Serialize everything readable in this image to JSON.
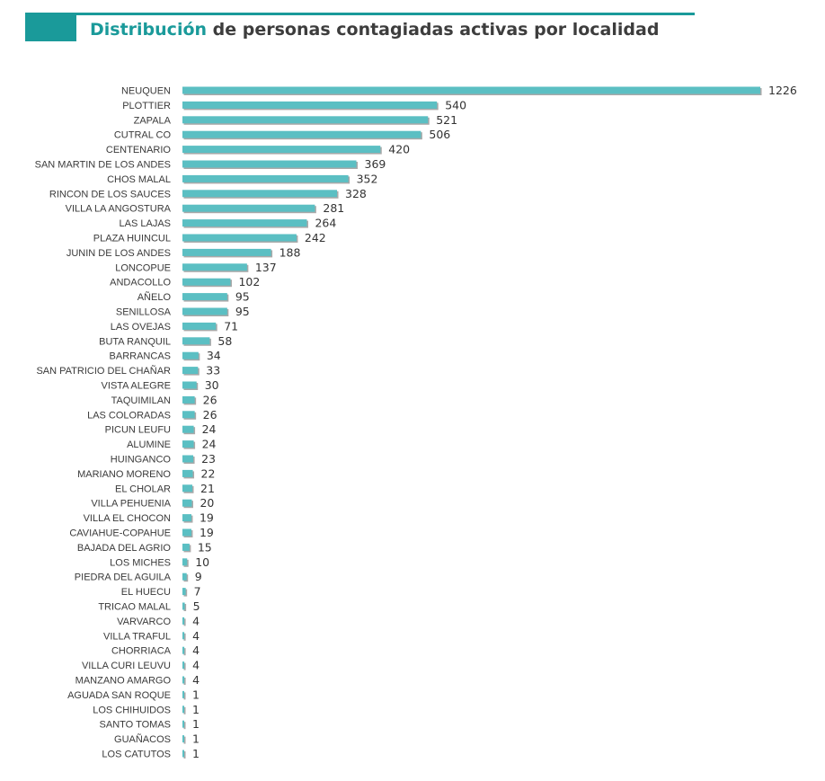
{
  "header": {
    "title_accent": "Distribución",
    "title_rest": " de personas contagiadas activas por localidad"
  },
  "colors": {
    "accent": "#1a9a9a",
    "bar": "#5bbfc3",
    "bar_shadow": "#a9a9a9"
  },
  "chart_data": {
    "type": "bar",
    "orientation": "horizontal",
    "title": "Distribución de personas contagiadas activas por localidad",
    "xlabel": "",
    "ylabel": "",
    "grid": false,
    "legend": "none",
    "xlim": [
      0,
      1226
    ],
    "categories": [
      "NEUQUEN",
      "PLOTTIER",
      "ZAPALA",
      "CUTRAL CO",
      "CENTENARIO",
      "SAN MARTIN DE LOS ANDES",
      "CHOS MALAL",
      "RINCON DE LOS SAUCES",
      "VILLA LA ANGOSTURA",
      "LAS LAJAS",
      "PLAZA HUINCUL",
      "JUNIN DE LOS ANDES",
      "LONCOPUE",
      "ANDACOLLO",
      "AÑELO",
      "SENILLOSA",
      "LAS OVEJAS",
      "BUTA RANQUIL",
      "BARRANCAS",
      "SAN PATRICIO DEL CHAÑAR",
      "VISTA ALEGRE",
      "TAQUIMILAN",
      "LAS COLORADAS",
      "PICUN LEUFU",
      "ALUMINE",
      "HUINGANCO",
      "MARIANO MORENO",
      "EL CHOLAR",
      "VILLA PEHUENIA",
      "VILLA EL CHOCON",
      "CAVIAHUE-COPAHUE",
      "BAJADA DEL AGRIO",
      "LOS MICHES",
      "PIEDRA DEL AGUILA",
      "EL HUECU",
      "TRICAO MALAL",
      "VARVARCO",
      "VILLA TRAFUL",
      "CHORRIACA",
      "VILLA CURI LEUVU",
      "MANZANO AMARGO",
      "AGUADA SAN ROQUE",
      "LOS CHIHUIDOS",
      "SANTO TOMAS",
      "GUAÑACOS",
      "LOS CATUTOS"
    ],
    "values": [
      1226,
      540,
      521,
      506,
      420,
      369,
      352,
      328,
      281,
      264,
      242,
      188,
      137,
      102,
      95,
      95,
      71,
      58,
      34,
      33,
      30,
      26,
      26,
      24,
      24,
      23,
      22,
      21,
      20,
      19,
      19,
      15,
      10,
      9,
      7,
      5,
      4,
      4,
      4,
      4,
      4,
      1,
      1,
      1,
      1,
      1
    ]
  }
}
